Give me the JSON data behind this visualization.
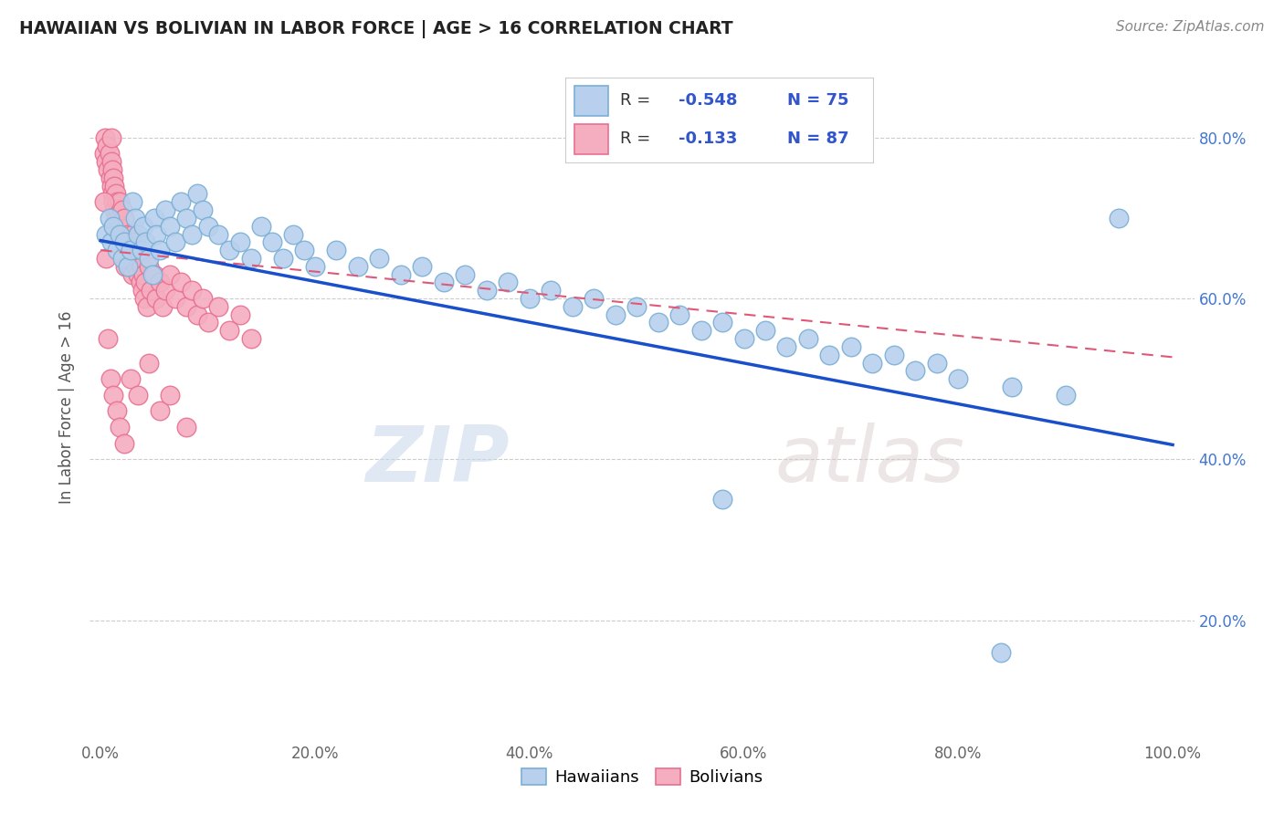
{
  "title": "HAWAIIAN VS BOLIVIAN IN LABOR FORCE | AGE > 16 CORRELATION CHART",
  "source_text": "Source: ZipAtlas.com",
  "ylabel": "In Labor Force | Age > 16",
  "xlim": [
    -0.01,
    1.02
  ],
  "ylim": [
    0.05,
    0.88
  ],
  "xticks": [
    0.0,
    0.2,
    0.4,
    0.6,
    0.8,
    1.0
  ],
  "xticklabels": [
    "0.0%",
    "20.0%",
    "40.0%",
    "60.0%",
    "80.0%",
    "100.0%"
  ],
  "yticks": [
    0.2,
    0.4,
    0.6,
    0.8
  ],
  "yticklabels": [
    "20.0%",
    "40.0%",
    "60.0%",
    "80.0%"
  ],
  "hawaiian_color": "#b8d0ed",
  "bolivian_color": "#f5adc0",
  "hawaiian_edge_color": "#7aafd4",
  "bolivian_edge_color": "#e87090",
  "hawaiian_line_color": "#1a4fcc",
  "bolivian_line_color": "#e05878",
  "grid_color": "#cccccc",
  "background_color": "#ffffff",
  "watermark_text1": "ZIP",
  "watermark_text2": "atlas",
  "hawaiian_x": [
    0.005,
    0.008,
    0.01,
    0.012,
    0.015,
    0.018,
    0.02,
    0.022,
    0.025,
    0.028,
    0.03,
    0.032,
    0.035,
    0.038,
    0.04,
    0.042,
    0.045,
    0.048,
    0.05,
    0.052,
    0.055,
    0.06,
    0.065,
    0.07,
    0.075,
    0.08,
    0.085,
    0.09,
    0.095,
    0.1,
    0.11,
    0.12,
    0.13,
    0.14,
    0.15,
    0.16,
    0.17,
    0.18,
    0.19,
    0.2,
    0.22,
    0.24,
    0.26,
    0.28,
    0.3,
    0.32,
    0.34,
    0.36,
    0.38,
    0.4,
    0.42,
    0.44,
    0.46,
    0.48,
    0.5,
    0.52,
    0.54,
    0.56,
    0.58,
    0.6,
    0.62,
    0.64,
    0.66,
    0.68,
    0.7,
    0.72,
    0.74,
    0.76,
    0.78,
    0.8,
    0.85,
    0.9,
    0.95,
    0.58,
    0.84
  ],
  "hawaiian_y": [
    0.68,
    0.7,
    0.67,
    0.69,
    0.66,
    0.68,
    0.65,
    0.67,
    0.64,
    0.66,
    0.72,
    0.7,
    0.68,
    0.66,
    0.69,
    0.67,
    0.65,
    0.63,
    0.7,
    0.68,
    0.66,
    0.71,
    0.69,
    0.67,
    0.72,
    0.7,
    0.68,
    0.73,
    0.71,
    0.69,
    0.68,
    0.66,
    0.67,
    0.65,
    0.69,
    0.67,
    0.65,
    0.68,
    0.66,
    0.64,
    0.66,
    0.64,
    0.65,
    0.63,
    0.64,
    0.62,
    0.63,
    0.61,
    0.62,
    0.6,
    0.61,
    0.59,
    0.6,
    0.58,
    0.59,
    0.57,
    0.58,
    0.56,
    0.57,
    0.55,
    0.56,
    0.54,
    0.55,
    0.53,
    0.54,
    0.52,
    0.53,
    0.51,
    0.52,
    0.5,
    0.49,
    0.48,
    0.7,
    0.35,
    0.16
  ],
  "bolivian_x": [
    0.003,
    0.004,
    0.005,
    0.006,
    0.007,
    0.008,
    0.009,
    0.01,
    0.01,
    0.01,
    0.011,
    0.011,
    0.012,
    0.012,
    0.013,
    0.013,
    0.014,
    0.014,
    0.015,
    0.015,
    0.016,
    0.016,
    0.017,
    0.018,
    0.018,
    0.019,
    0.02,
    0.02,
    0.021,
    0.022,
    0.022,
    0.023,
    0.023,
    0.024,
    0.025,
    0.026,
    0.027,
    0.028,
    0.029,
    0.03,
    0.03,
    0.031,
    0.032,
    0.033,
    0.034,
    0.035,
    0.036,
    0.037,
    0.038,
    0.039,
    0.04,
    0.041,
    0.042,
    0.043,
    0.045,
    0.047,
    0.05,
    0.052,
    0.055,
    0.058,
    0.06,
    0.065,
    0.07,
    0.075,
    0.08,
    0.085,
    0.09,
    0.095,
    0.1,
    0.11,
    0.12,
    0.13,
    0.14,
    0.003,
    0.005,
    0.007,
    0.009,
    0.012,
    0.015,
    0.018,
    0.022,
    0.028,
    0.035,
    0.045,
    0.055,
    0.065,
    0.08
  ],
  "bolivian_y": [
    0.78,
    0.8,
    0.77,
    0.79,
    0.76,
    0.78,
    0.75,
    0.77,
    0.8,
    0.74,
    0.76,
    0.73,
    0.75,
    0.72,
    0.74,
    0.71,
    0.73,
    0.7,
    0.72,
    0.69,
    0.71,
    0.68,
    0.7,
    0.72,
    0.67,
    0.69,
    0.71,
    0.66,
    0.68,
    0.7,
    0.65,
    0.67,
    0.64,
    0.66,
    0.68,
    0.65,
    0.67,
    0.64,
    0.66,
    0.63,
    0.68,
    0.65,
    0.67,
    0.64,
    0.66,
    0.63,
    0.65,
    0.62,
    0.64,
    0.61,
    0.63,
    0.6,
    0.62,
    0.59,
    0.64,
    0.61,
    0.63,
    0.6,
    0.62,
    0.59,
    0.61,
    0.63,
    0.6,
    0.62,
    0.59,
    0.61,
    0.58,
    0.6,
    0.57,
    0.59,
    0.56,
    0.58,
    0.55,
    0.72,
    0.65,
    0.55,
    0.5,
    0.48,
    0.46,
    0.44,
    0.42,
    0.5,
    0.48,
    0.52,
    0.46,
    0.48,
    0.44
  ],
  "hawaiian_trendline_x": [
    0.0,
    1.0
  ],
  "hawaiian_trendline_y": [
    0.672,
    0.418
  ],
  "bolivian_trendline_x": [
    0.0,
    1.0
  ],
  "bolivian_trendline_y": [
    0.66,
    0.527
  ]
}
